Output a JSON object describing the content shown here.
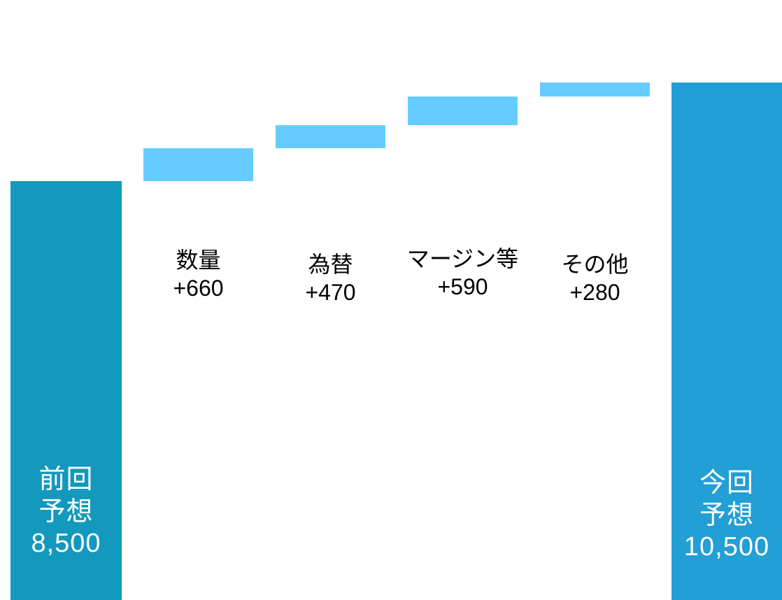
{
  "chart_data": {
    "type": "waterfall",
    "unit": "",
    "start": {
      "label_line1": "前回",
      "label_line2": "予想",
      "value": 8500,
      "value_text": "8,500",
      "color": "#1399BD"
    },
    "steps": [
      {
        "label": "数量",
        "value": 660,
        "value_text": "+660"
      },
      {
        "label": "為替",
        "value": 470,
        "value_text": "+470"
      },
      {
        "label": "マージン等",
        "value": 590,
        "value_text": "+590"
      },
      {
        "label": "その他",
        "value": 280,
        "value_text": "+280"
      }
    ],
    "end": {
      "label_line1": "今回",
      "label_line2": "予想",
      "value": 10500,
      "value_text": "10,500",
      "color": "#229FD5"
    },
    "step_color": "#66CCFF",
    "grid": false,
    "legend": "none"
  }
}
